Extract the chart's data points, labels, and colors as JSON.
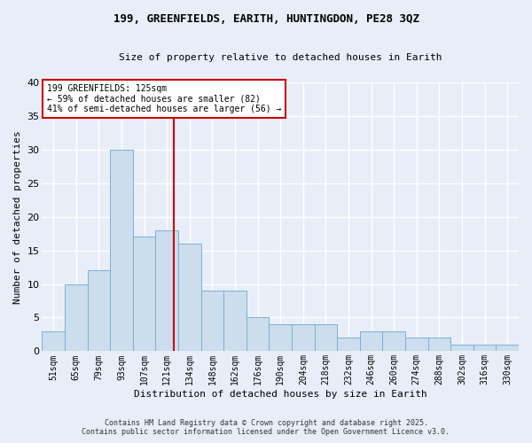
{
  "title": "199, GREENFIELDS, EARITH, HUNTINGDON, PE28 3QZ",
  "subtitle": "Size of property relative to detached houses in Earith",
  "xlabel": "Distribution of detached houses by size in Earith",
  "ylabel": "Number of detached properties",
  "categories": [
    "51sqm",
    "65sqm",
    "79sqm",
    "93sqm",
    "107sqm",
    "121sqm",
    "134sqm",
    "148sqm",
    "162sqm",
    "176sqm",
    "190sqm",
    "204sqm",
    "218sqm",
    "232sqm",
    "246sqm",
    "260sqm",
    "274sqm",
    "288sqm",
    "302sqm",
    "316sqm",
    "330sqm"
  ],
  "values": [
    3,
    10,
    12,
    30,
    17,
    18,
    16,
    9,
    9,
    5,
    4,
    4,
    4,
    2,
    3,
    3,
    2,
    2,
    1,
    1,
    1
  ],
  "bar_color": "#ccdded",
  "bar_edge_color": "#7bafd4",
  "ref_line_color": "#cc0000",
  "ref_line_x": 5.31,
  "annotation_title": "199 GREENFIELDS: 125sqm",
  "annotation_line1": "← 59% of detached houses are smaller (82)",
  "annotation_line2": "41% of semi-detached houses are larger (56) →",
  "annotation_box_color": "#ffffff",
  "annotation_box_edge": "#cc0000",
  "ylim": [
    0,
    40
  ],
  "yticks": [
    0,
    5,
    10,
    15,
    20,
    25,
    30,
    35,
    40
  ],
  "background_color": "#e8eef8",
  "grid_color": "#ffffff",
  "title_fontsize": 9,
  "subtitle_fontsize": 8,
  "footer_line1": "Contains HM Land Registry data © Crown copyright and database right 2025.",
  "footer_line2": "Contains public sector information licensed under the Open Government Licence v3.0."
}
